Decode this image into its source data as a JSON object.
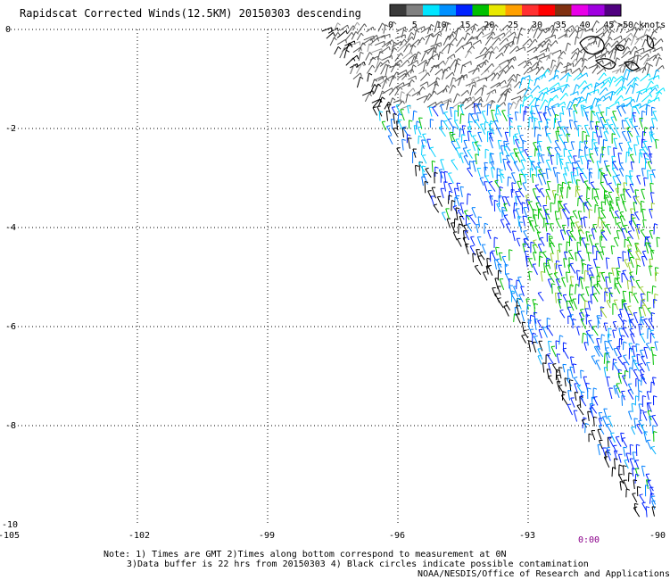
{
  "title": "Rapidscat Corrected Winds(12.5KM) 20150303 descending",
  "colorbar": {
    "labels": [
      "0",
      "5",
      "10",
      "15",
      "20",
      "25",
      "30",
      "35",
      "40",
      "45"
    ],
    "end_label": ">50 knots",
    "colors": [
      "#3a3a3a",
      "#808080",
      "#00e5ff",
      "#0090ff",
      "#0022ff",
      "#00c000",
      "#e8e800",
      "#ffa000",
      "#ff3030",
      "#ff0000",
      "#803010",
      "#e800e8",
      "#a000e0",
      "#500080"
    ]
  },
  "chart_data": {
    "type": "scatter",
    "subtype": "wind-barbs",
    "xlim": [
      -105,
      -90
    ],
    "ylim": [
      -10,
      0
    ],
    "x_ticks": [
      "-105",
      "-102",
      "-99",
      "-96",
      "-93",
      "-90"
    ],
    "x_tick_values": [
      -105,
      -102,
      -99,
      -96,
      -93,
      -90
    ],
    "y_ticks": [
      "0",
      "-2",
      "-4",
      "-6",
      "-8",
      "-10"
    ],
    "y_tick_values": [
      0,
      -2,
      -4,
      -6,
      -8,
      -10
    ],
    "grid": true,
    "time_label": "0:00",
    "swaths": [
      {
        "name": "",
        "edge_lon_at_0": -97.6,
        "edge_lon_at_-10": -90.4
      },
      {
        "name": "",
        "edge_lon_at_0": -96.6,
        "edge_lon_at_-10": -90.0
      }
    ],
    "speed_regions": [
      {
        "lat_range": [
          0,
          -2
        ],
        "lon_range": [
          -96,
          -90
        ],
        "speed_knots": "0-10"
      },
      {
        "lat_range": [
          -2,
          -4
        ],
        "lon_range": [
          -94,
          -90
        ],
        "speed_knots": "5-15"
      },
      {
        "lat_range": [
          -4,
          -6
        ],
        "lon_range": [
          -93,
          -90
        ],
        "speed_knots": "15-20"
      },
      {
        "lat_range": [
          -6,
          -10
        ],
        "lon_range": [
          -93,
          -90
        ],
        "speed_knots": "10-15"
      }
    ]
  },
  "notes": {
    "line1": "Note: 1) Times are GMT 2)Times along bottom correspond to measurement at 0N",
    "line2": "3)Data buffer is 22 hrs from 20150303 4) Black circles indicate possible contamination",
    "credit": "NOAA/NESDIS/Office of Research and Applications"
  }
}
